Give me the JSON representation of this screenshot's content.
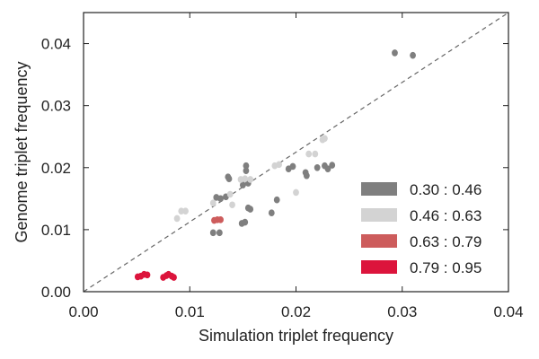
{
  "chart_data": {
    "type": "scatter",
    "xlabel": "Simulation triplet frequency",
    "ylabel": "Genome triplet frequency",
    "xlim": [
      0.0,
      0.04
    ],
    "ylim": [
      0.0,
      0.045
    ],
    "x_ticks": [
      "0.00",
      "0.01",
      "0.02",
      "0.03",
      "0.04"
    ],
    "y_ticks": [
      "0.00",
      "0.01",
      "0.02",
      "0.03",
      "0.04"
    ],
    "x_tick_values": [
      0.0,
      0.01,
      0.02,
      0.03,
      0.04
    ],
    "y_tick_values": [
      0.0,
      0.01,
      0.02,
      0.03,
      0.04
    ],
    "grid": false,
    "legend_position": "lower-right",
    "reference_line": {
      "style": "dashed",
      "color": "#666666",
      "from": [
        0.0,
        0.0
      ],
      "to": [
        0.04,
        0.045
      ]
    },
    "series": [
      {
        "name": "0.30 : 0.46",
        "color": "#7f7f7f",
        "points": [
          [
            0.0293,
            0.0385
          ],
          [
            0.031,
            0.0381
          ],
          [
            0.0153,
            0.0203
          ],
          [
            0.0153,
            0.0195
          ],
          [
            0.0136,
            0.0185
          ],
          [
            0.0137,
            0.0182
          ],
          [
            0.015,
            0.0172
          ],
          [
            0.0155,
            0.0175
          ],
          [
            0.0125,
            0.0152
          ],
          [
            0.0129,
            0.015
          ],
          [
            0.0134,
            0.0153
          ],
          [
            0.0155,
            0.0135
          ],
          [
            0.0157,
            0.0133
          ],
          [
            0.0149,
            0.011
          ],
          [
            0.0152,
            0.0112
          ],
          [
            0.0122,
            0.0095
          ],
          [
            0.0128,
            0.0095
          ],
          [
            0.0177,
            0.0127
          ],
          [
            0.0182,
            0.0148
          ],
          [
            0.0193,
            0.0198
          ],
          [
            0.0197,
            0.0202
          ],
          [
            0.0209,
            0.0192
          ],
          [
            0.021,
            0.0187
          ],
          [
            0.022,
            0.02
          ],
          [
            0.0227,
            0.0203
          ],
          [
            0.023,
            0.0198
          ],
          [
            0.0234,
            0.0204
          ]
        ]
      },
      {
        "name": "0.46 : 0.63",
        "color": "#d3d3d3",
        "points": [
          [
            0.0092,
            0.013
          ],
          [
            0.0096,
            0.013
          ],
          [
            0.0088,
            0.0118
          ],
          [
            0.0122,
            0.0143
          ],
          [
            0.0138,
            0.0157
          ],
          [
            0.014,
            0.014
          ],
          [
            0.0148,
            0.0181
          ],
          [
            0.0152,
            0.0182
          ],
          [
            0.0157,
            0.0181
          ],
          [
            0.018,
            0.0203
          ],
          [
            0.0184,
            0.0205
          ],
          [
            0.02,
            0.016
          ],
          [
            0.0212,
            0.0222
          ],
          [
            0.0218,
            0.0222
          ],
          [
            0.0225,
            0.0245
          ],
          [
            0.0227,
            0.0247
          ]
        ]
      },
      {
        "name": "0.63 : 0.79",
        "color": "#cd5c5c",
        "points": [
          [
            0.0123,
            0.0115
          ],
          [
            0.0126,
            0.0116
          ],
          [
            0.0129,
            0.0116
          ]
        ]
      },
      {
        "name": "0.79 : 0.95",
        "color": "#dc143c",
        "points": [
          [
            0.0051,
            0.0024
          ],
          [
            0.0054,
            0.0025
          ],
          [
            0.0057,
            0.0028
          ],
          [
            0.006,
            0.0027
          ],
          [
            0.0075,
            0.0023
          ],
          [
            0.0078,
            0.0026
          ],
          [
            0.008,
            0.0028
          ],
          [
            0.0083,
            0.0025
          ],
          [
            0.0085,
            0.0023
          ]
        ]
      }
    ]
  }
}
